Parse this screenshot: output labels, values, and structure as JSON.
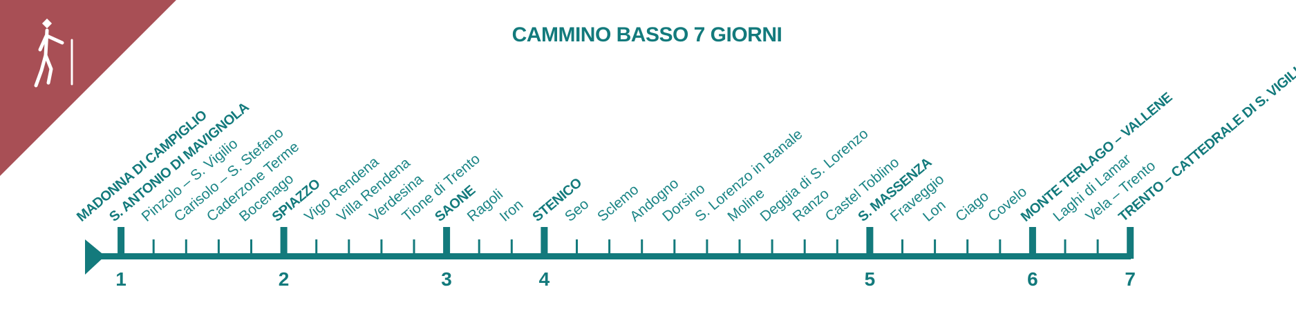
{
  "title": "CAMMINO BASSO 7 GIORNI",
  "stops": [
    {
      "name": "MADONNA DI CAMPIGLIO",
      "major": true
    },
    {
      "name": "S. ANTONIO DI MAVIGNOLA",
      "major": true,
      "day": "1"
    },
    {
      "name": "Pinzolo – S. Vigilio"
    },
    {
      "name": "Carisolo – S. Stefano"
    },
    {
      "name": "Caderzone Terme"
    },
    {
      "name": "Bocenago"
    },
    {
      "name": "SPIAZZO",
      "major": true,
      "day": "2"
    },
    {
      "name": "Vigo Rendena"
    },
    {
      "name": "Villa Rendena"
    },
    {
      "name": "Verdesina"
    },
    {
      "name": "Tione di Trento"
    },
    {
      "name": "SAONE",
      "major": true,
      "day": "3"
    },
    {
      "name": "Ragoli"
    },
    {
      "name": "Iron"
    },
    {
      "name": "STENICO",
      "major": true,
      "day": "4"
    },
    {
      "name": "Seo"
    },
    {
      "name": "Sclemo"
    },
    {
      "name": "Andogno"
    },
    {
      "name": "Dorsino"
    },
    {
      "name": "S. Lorenzo in Banale"
    },
    {
      "name": "Moline"
    },
    {
      "name": "Deggia di S. Lorenzo"
    },
    {
      "name": "Ranzo"
    },
    {
      "name": "Castel Toblino"
    },
    {
      "name": "S. MASSENZA",
      "major": true,
      "day": "5"
    },
    {
      "name": "Fraveggio"
    },
    {
      "name": "Lon"
    },
    {
      "name": "Ciago"
    },
    {
      "name": "Covelo"
    },
    {
      "name": "MONTE TERLAGO – VALLENE",
      "major": true,
      "day": "6"
    },
    {
      "name": "Laghi di Lamar"
    },
    {
      "name": "Vela – Trento"
    },
    {
      "name": "TRENTO – CATTEDRALE DI S. VIGILIO",
      "major": true,
      "day": "7"
    }
  ]
}
